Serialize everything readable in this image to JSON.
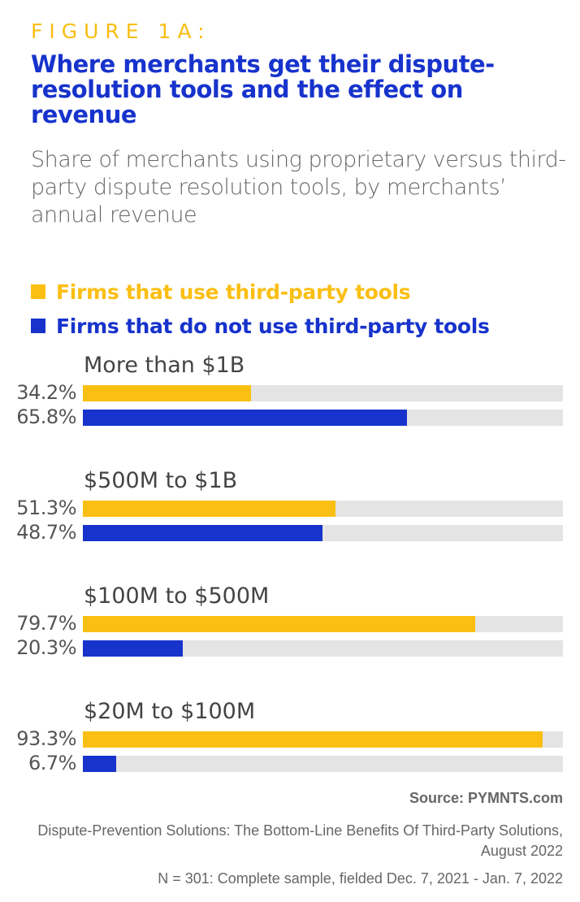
{
  "figure_label": "FIGURE 1A:",
  "title": "Where merchants get their dispute-resolution tools and the effect on revenue",
  "subtitle": "Share of merchants using proprietary versus third-party dispute resolution tools, by merchants’ annual revenue",
  "colors": {
    "third_party": "#fbbf14",
    "not_third_party": "#1733cc",
    "track": "#e4e4e4"
  },
  "chart_data": {
    "type": "bar",
    "orientation": "horizontal",
    "title": "Where merchants get their dispute-resolution tools and the effect on revenue",
    "categories": [
      "More than $1B",
      "$500M to $1B",
      "$100M to $500M",
      "$20M to $100M"
    ],
    "series": [
      {
        "name": "Firms that use third-party tools",
        "values": [
          34.2,
          51.3,
          79.7,
          93.3
        ],
        "labels": [
          "34.2%",
          "51.3%",
          "79.7%",
          "93.3%"
        ]
      },
      {
        "name": "Firms that do not use third-party tools",
        "values": [
          65.8,
          48.7,
          20.3,
          6.7
        ],
        "labels": [
          "65.8%",
          "48.7%",
          "20.3%",
          "6.7%"
        ]
      }
    ],
    "xlim": [
      0,
      97.5
    ],
    "legend": "top-left",
    "unit": "%"
  },
  "source": "Source: PYMNTS.com",
  "report": "Dispute-Prevention Solutions: The Bottom-Line Benefits Of Third-Party Solutions, August 2022",
  "sample": "N = 301: Complete sample, fielded Dec. 7, 2021 - Jan. 7, 2022"
}
